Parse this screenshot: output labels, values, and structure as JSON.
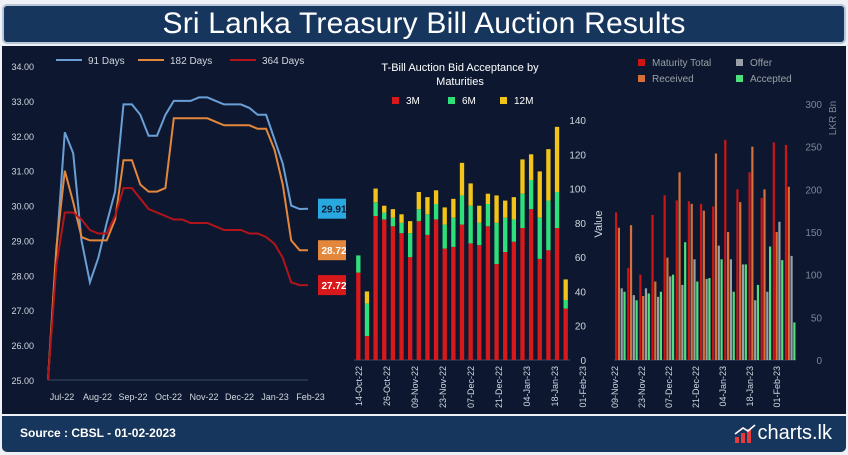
{
  "header": {
    "title": "Sri Lanka Treasury Bill Auction Results"
  },
  "footer": {
    "source": "Source : CBSL - 01-02-2023",
    "brand": "charts.lk"
  },
  "colors": {
    "bg": "#0d1830",
    "line_91": "#6a9fd6",
    "line_182": "#e2873b",
    "line_364": "#b3141a",
    "bar_3m": "#d7191c",
    "bar_6m": "#2fe07a",
    "bar_12m": "#f2c318",
    "maturity": "#cc1515",
    "received": "#d4713a",
    "offer": "#9aa0a6",
    "accepted": "#4ee07a",
    "axis_text": "#d0d6e0"
  },
  "chart_data": [
    {
      "type": "line",
      "title": "",
      "xlabel": "",
      "ylabel": "",
      "ylim": [
        25.0,
        34.0
      ],
      "yticks": [
        "34.00",
        "33.00",
        "32.00",
        "31.00",
        "30.00",
        "29.00",
        "28.00",
        "27.00",
        "26.00",
        "25.00"
      ],
      "xticks": [
        "Jul-22",
        "Aug-22",
        "Sep-22",
        "Oct-22",
        "Nov-22",
        "Dec-22",
        "Jan-23",
        "Feb-23"
      ],
      "series": [
        {
          "name": "91 Days",
          "values": [
            25.0,
            28.7,
            32.1,
            31.5,
            29.0,
            27.8,
            28.5,
            29.5,
            30.4,
            32.9,
            32.9,
            32.6,
            32.0,
            32.0,
            32.6,
            33.0,
            33.0,
            33.0,
            33.1,
            33.1,
            33.0,
            32.9,
            32.9,
            32.9,
            32.8,
            32.6,
            32.6,
            31.9,
            31.2,
            30.0,
            29.9,
            29.91
          ]
        },
        {
          "name": "182 Days",
          "values": [
            25.0,
            28.8,
            31.0,
            30.1,
            29.1,
            29.0,
            29.0,
            29.0,
            29.6,
            31.3,
            31.3,
            30.6,
            30.4,
            30.4,
            30.5,
            32.5,
            32.5,
            32.5,
            32.5,
            32.5,
            32.4,
            32.3,
            32.3,
            32.3,
            32.3,
            32.2,
            32.2,
            31.6,
            30.6,
            29.0,
            28.72,
            28.72
          ]
        },
        {
          "name": "364 Days",
          "values": [
            25.0,
            28.3,
            29.8,
            29.8,
            29.6,
            29.3,
            29.2,
            29.2,
            29.7,
            30.5,
            30.5,
            30.2,
            29.9,
            29.8,
            29.7,
            29.6,
            29.6,
            29.5,
            29.5,
            29.5,
            29.4,
            29.3,
            29.3,
            29.3,
            29.2,
            29.2,
            29.1,
            28.9,
            28.5,
            27.8,
            27.72,
            27.72
          ]
        }
      ],
      "end_labels": [
        "29.91",
        "28.72",
        "27.72"
      ],
      "legend": "top"
    },
    {
      "type": "bar",
      "stacked": true,
      "title": "T-Bill Auction Bid Acceptance by Maturities",
      "ylabel": "Value",
      "ylim": [
        0,
        140
      ],
      "yticks": [
        "140",
        "120",
        "100",
        "80",
        "60",
        "40",
        "20",
        "0"
      ],
      "xticks": [
        "14-Oct-22",
        "26-Oct-22",
        "09-Nov-22",
        "23-Nov-22",
        "07-Dec-22",
        "21-Dec-22",
        "04-Jan-23",
        "18-Jan-23",
        "01-Feb-23"
      ],
      "series": [
        {
          "name": "3M",
          "values": [
            51,
            14,
            84,
            82,
            78,
            74,
            60,
            81,
            73,
            82,
            65,
            66,
            79,
            68,
            67,
            78,
            56,
            63,
            69,
            77,
            88,
            59,
            64,
            77,
            30
          ]
        },
        {
          "name": "6M",
          "values": [
            10,
            19,
            8,
            4,
            5,
            6,
            14,
            7,
            12,
            9,
            14,
            17,
            17,
            22,
            13,
            13,
            24,
            20,
            13,
            20,
            17,
            24,
            29,
            21,
            5
          ]
        },
        {
          "name": "12M",
          "values": [
            0,
            7,
            8,
            4,
            5,
            5,
            7,
            10,
            10,
            8,
            10,
            11,
            19,
            13,
            10,
            6,
            16,
            10,
            13,
            20,
            15,
            27,
            30,
            38,
            12
          ]
        }
      ],
      "legend": "top"
    },
    {
      "type": "bar",
      "title": "",
      "ylabel": "LKR Bn",
      "ylim": [
        0,
        300
      ],
      "yticks": [
        "300",
        "250",
        "200",
        "150",
        "100",
        "50",
        "0"
      ],
      "xticks": [
        "09-Nov-22",
        "23-Nov-22",
        "07-Dec-22",
        "21-Dec-22",
        "04-Jan-23",
        "18-Jan-23",
        "01-Feb-23"
      ],
      "series": [
        {
          "name": "Maturity Total",
          "values": [
            173,
            108,
            100,
            170,
            193,
            187,
            186,
            183,
            180,
            258,
            200,
            220,
            190,
            255,
            252
          ]
        },
        {
          "name": "Received",
          "values": [
            155,
            158,
            75,
            92,
            120,
            220,
            183,
            175,
            242,
            150,
            185,
            250,
            200,
            150,
            203
          ]
        },
        {
          "name": "Offer",
          "values": [
            84,
            76,
            84,
            74,
            98,
            88,
            118,
            95,
            134,
            118,
            112,
            70,
            80,
            162,
            122
          ]
        },
        {
          "name": "Accepted",
          "values": [
            80,
            70,
            78,
            80,
            100,
            138,
            92,
            96,
            118,
            80,
            112,
            88,
            133,
            117,
            44
          ]
        }
      ],
      "legend": "top"
    }
  ]
}
